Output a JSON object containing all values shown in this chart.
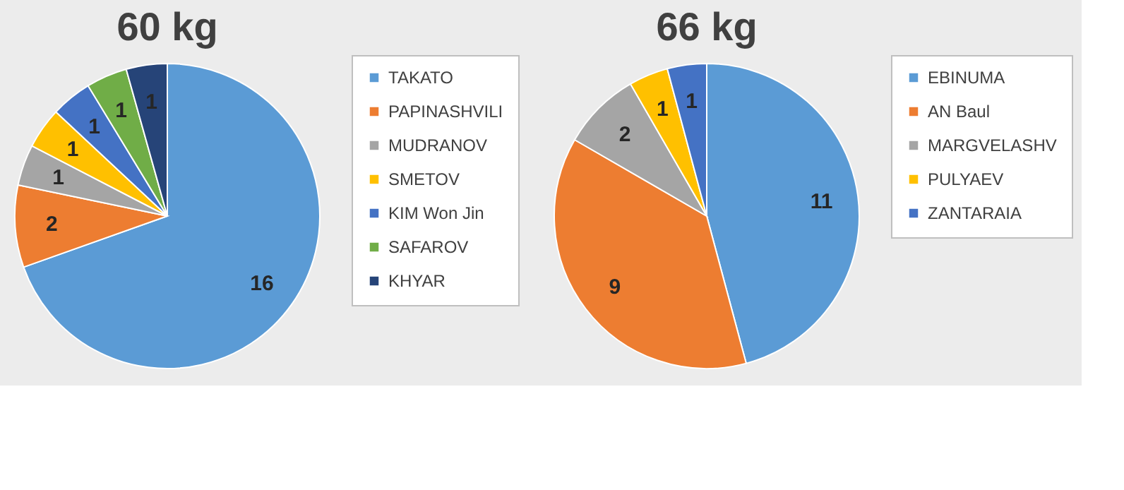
{
  "chart_data": [
    {
      "type": "pie",
      "title": "60 kg",
      "categories": [
        "TAKATO",
        "PAPINASHVILI",
        "MUDRANOV",
        "SMETOV",
        "KIM Won Jin",
        "SAFAROV",
        "KHYAR"
      ],
      "values": [
        16,
        2,
        1,
        1,
        1,
        1,
        1
      ],
      "colors": [
        "#5b9bd5",
        "#ed7d31",
        "#a5a5a5",
        "#ffc000",
        "#4472c4",
        "#70ad47",
        "#264478"
      ],
      "data_labels": true,
      "legend": "right"
    },
    {
      "type": "pie",
      "title": "66 kg",
      "categories": [
        "EBINUMA",
        "AN Baul",
        "MARGVELASHV",
        "PULYAEV",
        "ZANTARAIA"
      ],
      "values": [
        11,
        9,
        2,
        1,
        1
      ],
      "colors": [
        "#5b9bd5",
        "#ed7d31",
        "#a5a5a5",
        "#ffc000",
        "#4472c4"
      ],
      "data_labels": true,
      "legend": "right"
    }
  ]
}
